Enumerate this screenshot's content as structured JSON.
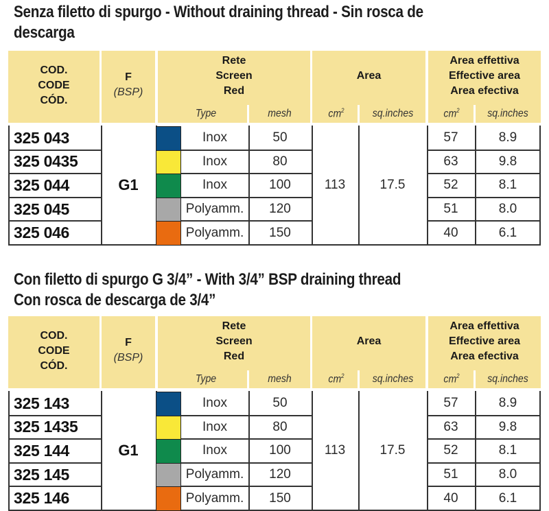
{
  "sections": [
    {
      "title_lines": [
        "Senza filetto di spurgo - Without draining thread - Sin rosca de",
        "descarga"
      ],
      "headers": {
        "code": [
          "COD.",
          "CODE",
          "CÓD."
        ],
        "f": "F",
        "f_sub": "(BSP)",
        "screen": [
          "Rete",
          "Screen",
          "Red"
        ],
        "screen_type": "Type",
        "screen_mesh": "mesh",
        "area": "Area",
        "area_cm": "cm",
        "area_sq": "sq.inches",
        "eff": [
          "Area effettiva",
          "Effective area",
          "Area efectiva"
        ],
        "eff_cm": "cm",
        "eff_sq": "sq.inches",
        "sup": "2"
      },
      "f_value": "G1",
      "area_cm2": "113",
      "area_sqin": "17.5",
      "rows": [
        {
          "code": "325 043",
          "color": "#0b4f86",
          "type": "Inox",
          "mesh": "50",
          "eff_cm2": "57",
          "eff_sqin": "8.9"
        },
        {
          "code": "325 0435",
          "color": "#f9e838",
          "type": "Inox",
          "mesh": "80",
          "eff_cm2": "63",
          "eff_sqin": "9.8"
        },
        {
          "code": "325 044",
          "color": "#0f8a4c",
          "type": "Inox",
          "mesh": "100",
          "eff_cm2": "52",
          "eff_sqin": "8.1"
        },
        {
          "code": "325 045",
          "color": "#a8a8a8",
          "type": "Polyamm.",
          "mesh": "120",
          "eff_cm2": "51",
          "eff_sqin": "8.0"
        },
        {
          "code": "325 046",
          "color": "#e96b10",
          "type": "Polyamm.",
          "mesh": "150",
          "eff_cm2": "40",
          "eff_sqin": "6.1"
        }
      ]
    },
    {
      "title_lines": [
        "Con filetto di spurgo G 3/4” - With 3/4” BSP draining thread",
        "Con rosca de descarga de 3/4”"
      ],
      "headers": {
        "code": [
          "COD.",
          "CODE",
          "CÓD."
        ],
        "f": "F",
        "f_sub": "(BSP)",
        "screen": [
          "Rete",
          "Screen",
          "Red"
        ],
        "screen_type": "Type",
        "screen_mesh": "mesh",
        "area": "Area",
        "area_cm": "cm",
        "area_sq": "sq.inches",
        "eff": [
          "Area effettiva",
          "Effective area",
          "Area efectiva"
        ],
        "eff_cm": "cm",
        "eff_sq": "sq.inches",
        "sup": "2"
      },
      "f_value": "G1",
      "area_cm2": "113",
      "area_sqin": "17.5",
      "rows": [
        {
          "code": "325 143",
          "color": "#0b4f86",
          "type": "Inox",
          "mesh": "50",
          "eff_cm2": "57",
          "eff_sqin": "8.9"
        },
        {
          "code": "325 1435",
          "color": "#f9e838",
          "type": "Inox",
          "mesh": "80",
          "eff_cm2": "63",
          "eff_sqin": "9.8"
        },
        {
          "code": "325 144",
          "color": "#0f8a4c",
          "type": "Inox",
          "mesh": "100",
          "eff_cm2": "52",
          "eff_sqin": "8.1"
        },
        {
          "code": "325 145",
          "color": "#a8a8a8",
          "type": "Polyamm.",
          "mesh": "120",
          "eff_cm2": "51",
          "eff_sqin": "8.0"
        },
        {
          "code": "325 146",
          "color": "#e96b10",
          "type": "Polyamm.",
          "mesh": "150",
          "eff_cm2": "40",
          "eff_sqin": "6.1"
        }
      ]
    }
  ]
}
